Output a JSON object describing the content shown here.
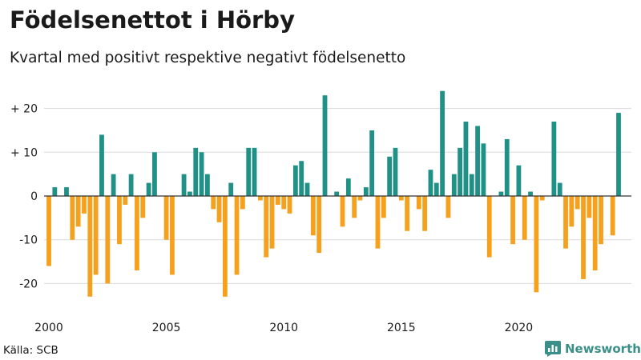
{
  "title": "Födelsenettot i Hörby",
  "subtitle": "Kvartal med positivt respektive negativt födelsenetto",
  "source": "Källa: SCB",
  "brand": {
    "name": "Newsworthy",
    "icon": "bar-chart-logo-icon"
  },
  "colors": {
    "positive": "#1f9187",
    "negative": "#f5a11e",
    "grid": "#d9d9d9",
    "baseline": "#333333",
    "text": "#1a1a1a"
  },
  "chart_data": {
    "type": "bar",
    "x_unit": "quarter",
    "first_quarter": "2000 Q1",
    "ylim": [
      -25,
      25
    ],
    "yticks": [
      20,
      10,
      0,
      -10,
      -20
    ],
    "ytick_labels": [
      "+ 20",
      "+ 10",
      "0",
      "-10",
      "-20"
    ],
    "xticks": [
      2000,
      2005,
      2010,
      2015,
      2020
    ],
    "xtick_labels": [
      "2000",
      "2005",
      "2010",
      "2015",
      "2020"
    ],
    "grid": true,
    "legend": "none",
    "values": [
      -16,
      2,
      0,
      2,
      -10,
      -7,
      -4,
      -23,
      -18,
      14,
      -20,
      5,
      -11,
      -2,
      5,
      -17,
      -5,
      3,
      10,
      0,
      -10,
      -18,
      0,
      5,
      1,
      11,
      10,
      5,
      -3,
      -6,
      -23,
      3,
      -18,
      -3,
      11,
      11,
      -1,
      -14,
      -12,
      -2,
      -3,
      -4,
      7,
      8,
      3,
      -9,
      -13,
      23,
      0,
      1,
      -7,
      4,
      -5,
      -1,
      2,
      15,
      -12,
      -5,
      9,
      11,
      -1,
      -8,
      0,
      -3,
      -8,
      6,
      3,
      24,
      -5,
      5,
      11,
      17,
      5,
      16,
      12,
      -14,
      0,
      1,
      13,
      -11,
      7,
      -10,
      1,
      -22,
      -1,
      0,
      17,
      3,
      -12,
      -7,
      -3,
      -19,
      -5,
      -17,
      -11,
      0,
      -9,
      19
    ]
  }
}
